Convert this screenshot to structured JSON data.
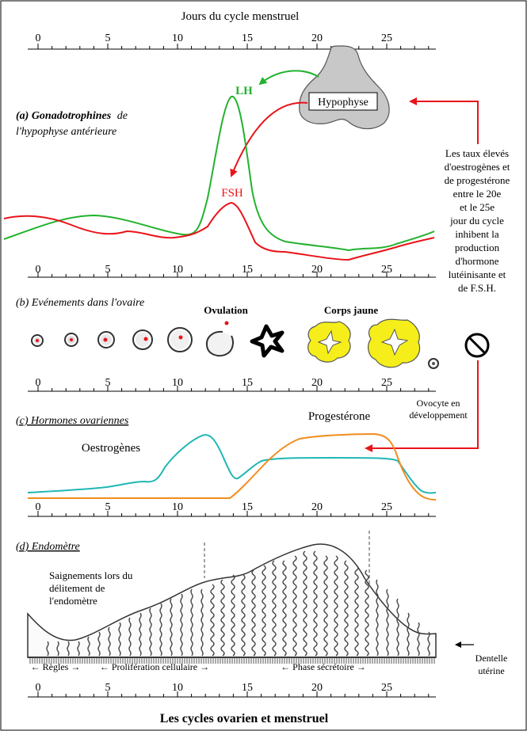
{
  "top_axis_title": "Jours du cycle menstruel",
  "bottom_title": "Les cycles ovarien et menstruel",
  "day_ticks": [
    "0",
    "5",
    "10",
    "15",
    "20",
    "25"
  ],
  "panel_a": {
    "title_bold": "(a) Gonadotrophines",
    "title_rest": "de",
    "title_line2": "l'hypophyse antérieure",
    "lh_label": "LH",
    "fsh_label": "FSH",
    "gland_label": "Hypophyse",
    "lh_color": "#22b22e",
    "fsh_color": "#e8141a"
  },
  "side_note": {
    "lines": [
      "Les taux élevés",
      "d'oestrogènes et",
      "de progestérone",
      "entre le 20e",
      "et le 25e",
      "jour du cycle",
      "inhibent la",
      "production",
      "d'hormone",
      "lutéinisante et",
      "de F.S.H."
    ]
  },
  "panel_b": {
    "title": "(b) Evénements dans l'ovaire",
    "ovulation_label": "Ovulation",
    "corpus_label": "Corps jaune",
    "oocyte_label_1": "Ovocyte en",
    "oocyte_label_2": "développement",
    "corpus_color": "#f5ee1a"
  },
  "panel_c": {
    "title": "(c) Hormones ovariennes",
    "estrogen_label": "Oestrogènes",
    "progesterone_label": "Progestérone",
    "estrogen_color": "#1fb7b5",
    "progesterone_color": "#f28c1e"
  },
  "panel_d": {
    "title": "(d) Endomètre",
    "bleed_label_1": "Saignements lors du",
    "bleed_label_2": "délitement de",
    "bleed_label_3": "l'endomètre",
    "lace_label_1": "Dentelle",
    "lace_label_2": "utérine",
    "phase_regles": "← Règles →",
    "phase_prolif": "← Prolifération cellulaire →",
    "phase_secret": "← Phase sécrétoire →"
  }
}
